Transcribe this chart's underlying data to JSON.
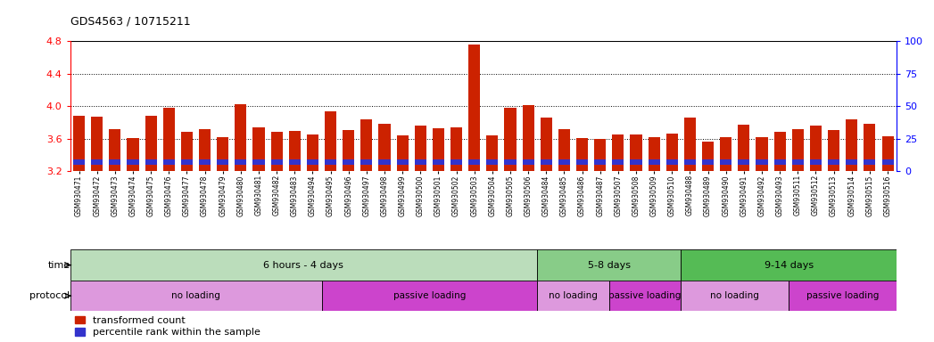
{
  "title": "GDS4563 / 10715211",
  "samples": [
    "GSM930471",
    "GSM930472",
    "GSM930473",
    "GSM930474",
    "GSM930475",
    "GSM930476",
    "GSM930477",
    "GSM930478",
    "GSM930479",
    "GSM930480",
    "GSM930481",
    "GSM930482",
    "GSM930483",
    "GSM930494",
    "GSM930495",
    "GSM930496",
    "GSM930497",
    "GSM930498",
    "GSM930499",
    "GSM930500",
    "GSM930501",
    "GSM930502",
    "GSM930503",
    "GSM930504",
    "GSM930505",
    "GSM930506",
    "GSM930484",
    "GSM930485",
    "GSM930486",
    "GSM930487",
    "GSM930507",
    "GSM930508",
    "GSM930509",
    "GSM930510",
    "GSM930488",
    "GSM930489",
    "GSM930490",
    "GSM930491",
    "GSM930492",
    "GSM930493",
    "GSM930511",
    "GSM930512",
    "GSM930513",
    "GSM930514",
    "GSM930515",
    "GSM930516"
  ],
  "red_values": [
    3.88,
    3.87,
    3.72,
    3.61,
    3.88,
    3.98,
    3.68,
    3.72,
    3.62,
    4.02,
    3.74,
    3.68,
    3.69,
    3.65,
    3.94,
    3.7,
    3.84,
    3.78,
    3.64,
    3.76,
    3.73,
    3.74,
    4.76,
    3.64,
    3.98,
    4.01,
    3.86,
    3.72,
    3.61,
    3.59,
    3.65,
    3.65,
    3.62,
    3.66,
    3.86,
    3.56,
    3.62,
    3.77,
    3.62,
    3.68,
    3.72,
    3.76,
    3.7,
    3.84,
    3.78,
    3.63
  ],
  "blue_heights": [
    0.06,
    0.06,
    0.06,
    0.06,
    0.06,
    0.06,
    0.06,
    0.06,
    0.06,
    0.06,
    0.06,
    0.06,
    0.06,
    0.06,
    0.06,
    0.06,
    0.06,
    0.06,
    0.06,
    0.06,
    0.06,
    0.06,
    0.06,
    0.06,
    0.06,
    0.06,
    0.06,
    0.06,
    0.06,
    0.06,
    0.06,
    0.06,
    0.06,
    0.06,
    0.06,
    0.06,
    0.06,
    0.06,
    0.06,
    0.06,
    0.06,
    0.06,
    0.06,
    0.06,
    0.06,
    0.06
  ],
  "ylim_left": [
    3.2,
    4.8
  ],
  "ylim_right": [
    0,
    100
  ],
  "yticks_left": [
    3.2,
    3.6,
    4.0,
    4.4,
    4.8
  ],
  "yticks_right": [
    0,
    25,
    50,
    75,
    100
  ],
  "grid_lines": [
    3.6,
    4.0,
    4.4
  ],
  "bar_color_red": "#cc2200",
  "bar_color_blue": "#3333cc",
  "bar_bottom": 3.2,
  "time_groups": [
    {
      "label": "6 hours - 4 days",
      "start": 0,
      "end": 26,
      "color": "#bbddbb"
    },
    {
      "label": "5-8 days",
      "start": 26,
      "end": 34,
      "color": "#88cc88"
    },
    {
      "label": "9-14 days",
      "start": 34,
      "end": 46,
      "color": "#55bb55"
    }
  ],
  "protocol_groups": [
    {
      "label": "no loading",
      "start": 0,
      "end": 14,
      "color": "#dd99dd"
    },
    {
      "label": "passive loading",
      "start": 14,
      "end": 26,
      "color": "#cc44cc"
    },
    {
      "label": "no loading",
      "start": 26,
      "end": 30,
      "color": "#dd99dd"
    },
    {
      "label": "passive loading",
      "start": 30,
      "end": 34,
      "color": "#cc44cc"
    },
    {
      "label": "no loading",
      "start": 34,
      "end": 40,
      "color": "#dd99dd"
    },
    {
      "label": "passive loading",
      "start": 40,
      "end": 46,
      "color": "#cc44cc"
    }
  ],
  "legend_red_label": "transformed count",
  "legend_blue_label": "percentile rank within the sample",
  "bar_width": 0.65,
  "chart_bg": "#ffffff",
  "fig_bg": "#ffffff"
}
